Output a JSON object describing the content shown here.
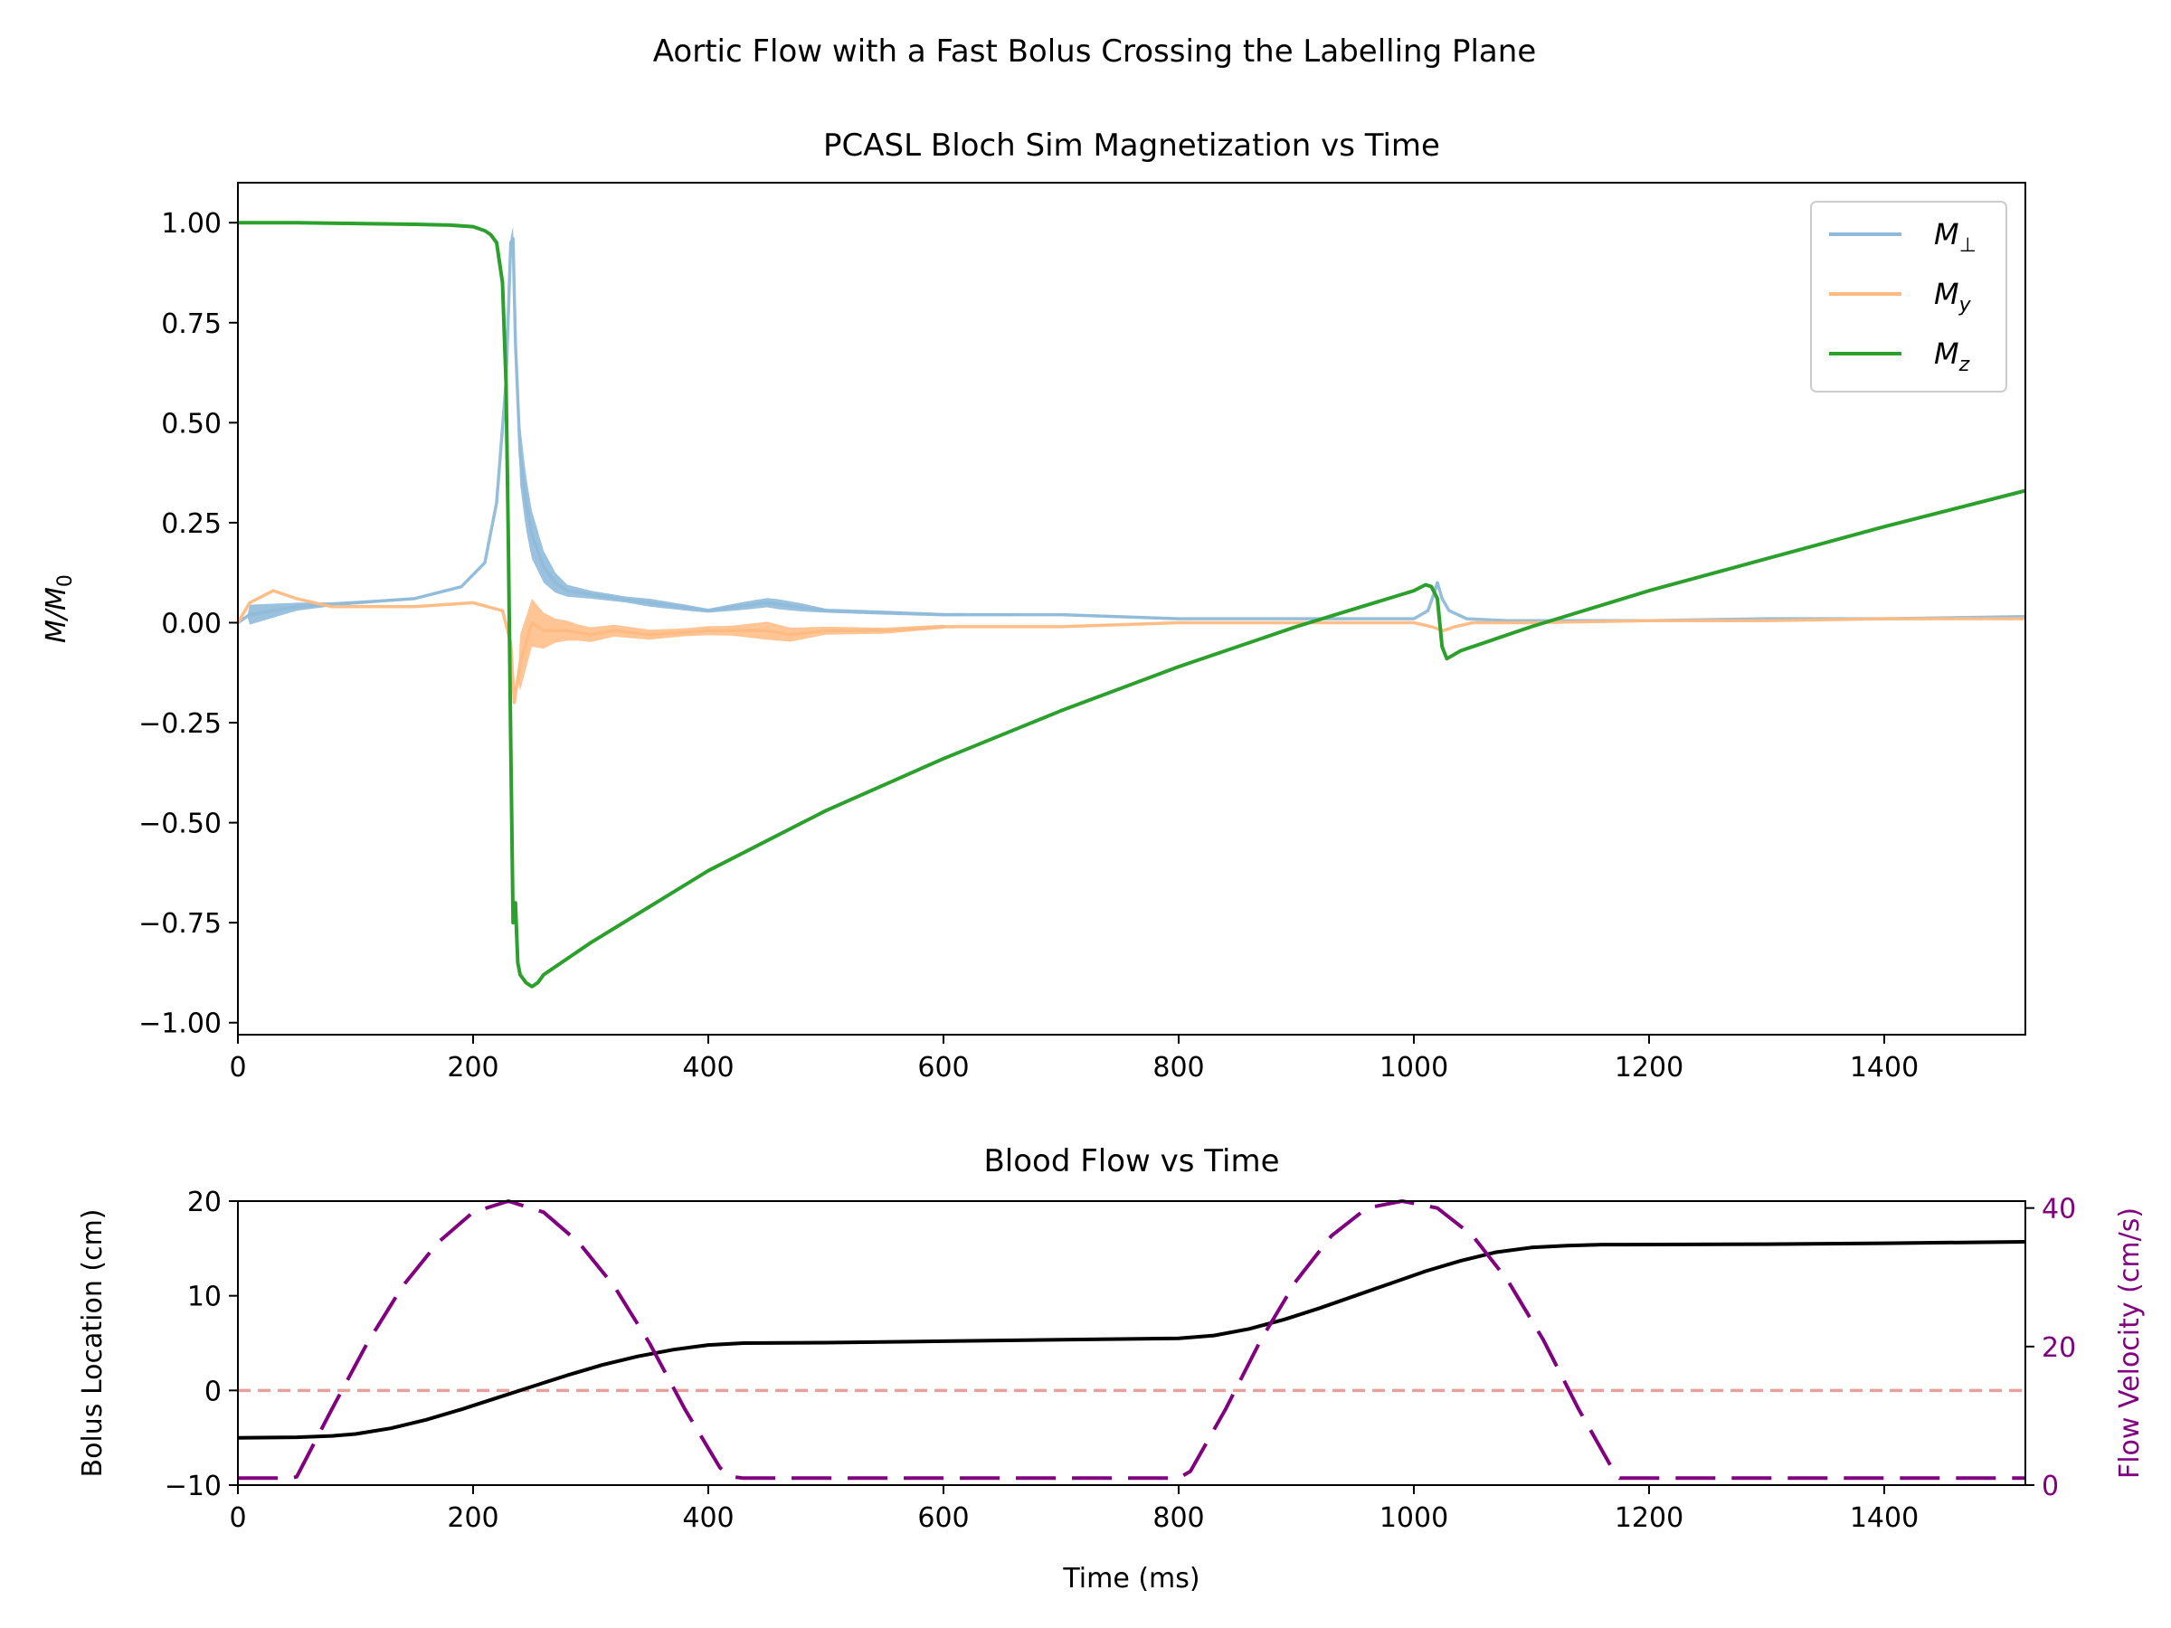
{
  "figure": {
    "suptitle": "Aortic Flow with a Fast Bolus Crossing the Labelling Plane"
  },
  "chart_data": [
    {
      "type": "line",
      "title": "PCASL Bloch Sim Magnetization vs Time",
      "xlabel": "",
      "ylabel": "M/M₀",
      "xlim": [
        0,
        1520
      ],
      "ylim": [
        -1.03,
        1.1
      ],
      "xticks": [
        0,
        200,
        400,
        600,
        800,
        1000,
        1200,
        1400
      ],
      "yticks": [
        "1.00",
        "0.75",
        "0.50",
        "0.25",
        "0.00",
        "−0.25",
        "−0.50",
        "−0.75",
        "−1.00"
      ],
      "ytick_values": [
        1.0,
        0.75,
        0.5,
        0.25,
        0.0,
        -0.25,
        -0.5,
        -0.75,
        -1.0
      ],
      "legend": {
        "position": "top-right",
        "entries": [
          "M⊥",
          "My",
          "Mz"
        ]
      },
      "series": [
        {
          "name": "M⊥",
          "color": "#8fbad9",
          "x": [
            0,
            10,
            50,
            100,
            150,
            190,
            210,
            220,
            228,
            232,
            234,
            236,
            240,
            245,
            250,
            260,
            270,
            280,
            300,
            350,
            400,
            450,
            500,
            600,
            700,
            800,
            900,
            1000,
            1012,
            1018,
            1020,
            1024,
            1030,
            1045,
            1080,
            1100,
            1200,
            1300,
            1400,
            1520
          ],
          "y": [
            0.0,
            0.02,
            0.04,
            0.05,
            0.06,
            0.09,
            0.15,
            0.3,
            0.6,
            0.95,
            0.96,
            0.7,
            0.42,
            0.3,
            0.22,
            0.14,
            0.1,
            0.08,
            0.07,
            0.05,
            0.03,
            0.05,
            0.03,
            0.02,
            0.02,
            0.01,
            0.01,
            0.01,
            0.03,
            0.08,
            0.1,
            0.06,
            0.03,
            0.01,
            0.005,
            0.005,
            0.005,
            0.01,
            0.01,
            0.015
          ],
          "band_x": [
            10,
            50,
            80,
            230,
            240,
            250,
            260,
            270,
            280,
            300,
            330,
            350,
            380,
            400,
            430,
            460,
            480,
            500,
            550,
            600,
            700,
            800
          ],
          "band_w": [
            0.05,
            0.02,
            0.01,
            0.0,
            0.15,
            0.12,
            0.08,
            0.05,
            0.03,
            0.02,
            0.015,
            0.02,
            0.015,
            0.01,
            0.02,
            0.025,
            0.02,
            0.01,
            0.01,
            0.008,
            0.006,
            0.004
          ]
        },
        {
          "name": "My",
          "color": "#ffbb82",
          "x": [
            0,
            10,
            30,
            50,
            80,
            100,
            150,
            200,
            225,
            232,
            235,
            240,
            250,
            260,
            280,
            300,
            320,
            350,
            400,
            450,
            470,
            500,
            550,
            600,
            700,
            800,
            900,
            1000,
            1015,
            1025,
            1035,
            1050,
            1100,
            1200,
            1300,
            1400,
            1520
          ],
          "y": [
            0.0,
            0.05,
            0.08,
            0.06,
            0.04,
            0.04,
            0.04,
            0.05,
            0.03,
            -0.05,
            -0.2,
            -0.1,
            0.0,
            -0.02,
            -0.02,
            -0.03,
            -0.02,
            -0.03,
            -0.02,
            -0.02,
            -0.03,
            -0.02,
            -0.02,
            -0.01,
            -0.01,
            0.0,
            0.0,
            0.0,
            -0.01,
            -0.02,
            -0.01,
            0.0,
            0.0,
            0.005,
            0.005,
            0.01,
            0.01
          ],
          "band_x": [
            240,
            250,
            260,
            270,
            290,
            320,
            350,
            380,
            420,
            450,
            470,
            500,
            550,
            600
          ],
          "band_w": [
            0.14,
            0.12,
            0.09,
            0.06,
            0.04,
            0.03,
            0.025,
            0.02,
            0.025,
            0.045,
            0.035,
            0.02,
            0.015,
            0.01
          ]
        },
        {
          "name": "Mz",
          "color": "#2ca02c",
          "x": [
            0,
            50,
            100,
            150,
            180,
            200,
            210,
            215,
            220,
            225,
            228,
            230,
            232,
            234,
            236,
            238,
            240,
            245,
            250,
            255,
            260,
            280,
            300,
            350,
            400,
            500,
            600,
            700,
            800,
            900,
            1000,
            1010,
            1015,
            1020,
            1024,
            1028,
            1040,
            1100,
            1200,
            1300,
            1400,
            1520
          ],
          "y": [
            1.0,
            1.0,
            0.998,
            0.996,
            0.994,
            0.99,
            0.98,
            0.97,
            0.95,
            0.85,
            0.6,
            0.2,
            -0.3,
            -0.75,
            -0.7,
            -0.85,
            -0.88,
            -0.9,
            -0.91,
            -0.9,
            -0.88,
            -0.84,
            -0.8,
            -0.71,
            -0.62,
            -0.47,
            -0.34,
            -0.22,
            -0.11,
            -0.01,
            0.08,
            0.095,
            0.09,
            0.06,
            -0.06,
            -0.09,
            -0.07,
            -0.01,
            0.08,
            0.16,
            0.24,
            0.33
          ]
        }
      ]
    },
    {
      "type": "line",
      "title": "Blood Flow vs Time",
      "xlabel": "Time (ms)",
      "ylabel": "Bolus Location (cm)",
      "y2label": "Flow Velocity (cm/s)",
      "xlim": [
        0,
        1520
      ],
      "ylim": [
        -10,
        20
      ],
      "y2lim": [
        0,
        41
      ],
      "xticks": [
        0,
        200,
        400,
        600,
        800,
        1000,
        1200,
        1400
      ],
      "yticks": [
        20,
        10,
        0,
        -10
      ],
      "ytick_labels": [
        "20",
        "10",
        "0",
        "−10"
      ],
      "y2ticks": [
        40,
        20,
        0
      ],
      "reference_line": {
        "y": 0,
        "color": "#e8a09a",
        "style": "dashed"
      },
      "series": [
        {
          "axis": "left",
          "color": "#000000",
          "style": "solid",
          "x": [
            0,
            50,
            80,
            100,
            130,
            160,
            190,
            220,
            250,
            280,
            310,
            340,
            370,
            400,
            430,
            500,
            600,
            700,
            800,
            830,
            860,
            890,
            920,
            950,
            980,
            1010,
            1040,
            1070,
            1100,
            1130,
            1160,
            1180,
            1300,
            1400,
            1520
          ],
          "y": [
            -5.0,
            -4.95,
            -4.8,
            -4.6,
            -4.0,
            -3.1,
            -2.0,
            -0.8,
            0.4,
            1.6,
            2.7,
            3.6,
            4.3,
            4.8,
            5.0,
            5.05,
            5.2,
            5.35,
            5.5,
            5.8,
            6.5,
            7.5,
            8.7,
            10.0,
            11.3,
            12.6,
            13.7,
            14.6,
            15.1,
            15.3,
            15.4,
            15.4,
            15.45,
            15.55,
            15.7
          ]
        },
        {
          "axis": "right",
          "color": "#800080",
          "style": "dashed",
          "x": [
            0,
            45,
            50,
            80,
            110,
            140,
            170,
            200,
            230,
            260,
            290,
            320,
            350,
            380,
            410,
            420,
            430,
            500,
            600,
            700,
            800,
            810,
            840,
            870,
            900,
            930,
            960,
            990,
            1020,
            1050,
            1080,
            1110,
            1140,
            1170,
            1175,
            1200,
            1300,
            1400,
            1520
          ],
          "y": [
            1.0,
            1.0,
            1.2,
            11.0,
            20.5,
            28.7,
            35.0,
            39.4,
            41.0,
            39.4,
            35.0,
            28.7,
            20.5,
            11.0,
            2.5,
            1.2,
            1.0,
            1.0,
            1.0,
            1.0,
            1.0,
            2.0,
            11.0,
            21.0,
            29.5,
            36.0,
            40.0,
            41.0,
            40.0,
            36.0,
            29.5,
            21.0,
            11.0,
            2.0,
            1.0,
            1.0,
            1.0,
            1.0,
            1.0
          ]
        }
      ]
    }
  ]
}
